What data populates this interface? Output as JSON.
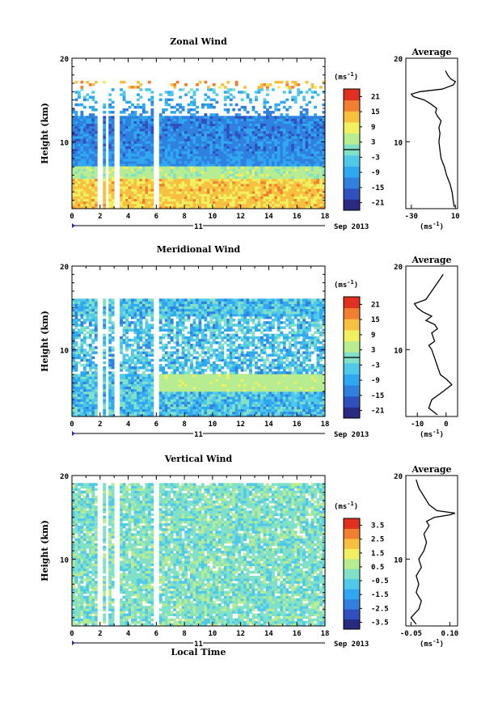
{
  "chart_data": [
    {
      "type": "heatmap",
      "title": "Zonal Wind",
      "ylabel": "Height (km)",
      "xlim": [
        0,
        18
      ],
      "ylim": [
        2,
        20
      ],
      "xticks": [
        "0",
        "2",
        "4",
        "6",
        "8",
        "10",
        "12",
        "14",
        "16",
        "18"
      ],
      "yticks": [
        "20",
        "10"
      ],
      "date_label": "11",
      "month_label": "Sep 2013",
      "colorbar": {
        "unit": "(ms",
        "unit_exp": "-1",
        "unit_close": ")",
        "range": [
          -24,
          24
        ],
        "ticks": [
          "21",
          "15",
          "9",
          "3",
          "-3",
          "-9",
          "-15",
          "-21"
        ],
        "zero_line": true
      },
      "blank_columns_hours": [
        [
          1.8,
          2.2
        ],
        [
          2.4,
          2.6
        ],
        [
          3.1,
          3.4
        ],
        [
          5.7,
          6.2
        ]
      ],
      "wind_profile": [
        [
          -18,
          4
        ],
        [
          -16,
          6
        ],
        [
          -20,
          9
        ],
        [
          -22,
          12
        ],
        [
          -18,
          14
        ],
        [
          -9,
          16
        ],
        [
          -2,
          17
        ]
      ],
      "average": {
        "title": "Average",
        "xlabel": "(ms",
        "xlabel_exp": "-1",
        "xlabel_close": ")",
        "xlim": [
          -35,
          12
        ],
        "xticks": [
          "-30",
          "10"
        ],
        "yticks": [
          "20",
          "10"
        ],
        "profile": [
          [
            9,
            2.2
          ],
          [
            8,
            3
          ],
          [
            7,
            4
          ],
          [
            5,
            5
          ],
          [
            2,
            6
          ],
          [
            0,
            7
          ],
          [
            -3,
            8
          ],
          [
            -4,
            9
          ],
          [
            -5,
            10
          ],
          [
            -4,
            11
          ],
          [
            -5,
            11.7
          ],
          [
            -3,
            12.5
          ],
          [
            -6,
            13
          ],
          [
            -8,
            13.5
          ],
          [
            -7,
            14
          ],
          [
            -12,
            14.5
          ],
          [
            -18,
            15
          ],
          [
            -28,
            15.4
          ],
          [
            -30,
            15.7
          ],
          [
            -22,
            16
          ],
          [
            -2,
            16.3
          ],
          [
            8,
            16.8
          ],
          [
            10,
            17.2
          ],
          [
            6,
            17.5
          ],
          [
            3,
            18
          ],
          [
            1,
            18.5
          ]
        ]
      }
    },
    {
      "type": "heatmap",
      "title": "Meridional Wind",
      "ylabel": "Height (km)",
      "xlim": [
        0,
        18
      ],
      "ylim": [
        2,
        20
      ],
      "xticks": [
        "0",
        "2",
        "4",
        "6",
        "8",
        "10",
        "12",
        "14",
        "16",
        "18"
      ],
      "yticks": [
        "20",
        "10"
      ],
      "date_label": "11",
      "month_label": "Sep 2013",
      "colorbar": {
        "unit": "(ms",
        "unit_exp": "-1",
        "unit_close": ")",
        "range": [
          -24,
          24
        ],
        "ticks": [
          "21",
          "15",
          "9",
          "3",
          "-3",
          "-9",
          "-15",
          "-21"
        ],
        "zero_line": true
      },
      "blank_columns_hours": [
        [
          1.8,
          2.2
        ],
        [
          2.4,
          2.6
        ],
        [
          3.1,
          3.4
        ],
        [
          5.7,
          6.2
        ]
      ],
      "wind_profile": [
        [
          -10,
          3
        ],
        [
          -8,
          4
        ],
        [
          -4,
          6
        ],
        [
          -6,
          8
        ],
        [
          -8,
          10
        ],
        [
          -10,
          13
        ],
        [
          -9,
          15
        ],
        [
          -6,
          17
        ]
      ],
      "average": {
        "title": "Average",
        "xlabel": "(ms",
        "xlabel_exp": "-1",
        "xlabel_close": ")",
        "xlim": [
          -14,
          4
        ],
        "xticks": [
          "-10",
          "0"
        ],
        "yticks": [
          "20",
          "10"
        ],
        "profile": [
          [
            -3,
            2.2
          ],
          [
            -6,
            3
          ],
          [
            -5,
            4
          ],
          [
            -1,
            5
          ],
          [
            2,
            5.8
          ],
          [
            0,
            6.5
          ],
          [
            -2,
            7
          ],
          [
            -3,
            8
          ],
          [
            -4,
            9
          ],
          [
            -5,
            10
          ],
          [
            -6,
            10.5
          ],
          [
            -4,
            11
          ],
          [
            -5,
            12
          ],
          [
            -3,
            12.5
          ],
          [
            -4,
            13
          ],
          [
            -7,
            13.5
          ],
          [
            -5,
            14
          ],
          [
            -8,
            14.5
          ],
          [
            -10,
            15
          ],
          [
            -11,
            15.5
          ],
          [
            -7,
            16
          ],
          [
            -5,
            17
          ],
          [
            -3,
            18
          ],
          [
            -2,
            18.5
          ],
          [
            -1,
            19
          ]
        ]
      }
    },
    {
      "type": "heatmap",
      "title": "Vertical Wind",
      "ylabel": "Height (km)",
      "xlabel": "Local Time",
      "xlim": [
        0,
        18
      ],
      "ylim": [
        2,
        20
      ],
      "xticks": [
        "0",
        "2",
        "4",
        "6",
        "8",
        "10",
        "12",
        "14",
        "16",
        "18"
      ],
      "yticks": [
        "20",
        "10"
      ],
      "date_label": "11",
      "month_label": "Sep 2013",
      "colorbar": {
        "unit": "(ms",
        "unit_exp": "-1",
        "unit_close": ")",
        "range": [
          -4,
          4
        ],
        "ticks": [
          "3.5",
          "2.5",
          "1.5",
          "0.5",
          "-0.5",
          "-1.5",
          "-2.5",
          "-3.5"
        ],
        "zero_line": false
      },
      "blank_columns_hours": [
        [
          1.8,
          2.2
        ],
        [
          2.4,
          2.6
        ],
        [
          3.1,
          3.4
        ],
        [
          5.7,
          6.2
        ]
      ],
      "wind_profile": [
        [
          0,
          3
        ],
        [
          0,
          6
        ],
        [
          0,
          9
        ],
        [
          0,
          12
        ],
        [
          0,
          15
        ],
        [
          0,
          18
        ]
      ],
      "average": {
        "title": "Average",
        "xlabel": "(ms",
        "xlabel_exp": "-1",
        "xlabel_close": ")",
        "xlim": [
          -0.07,
          0.13
        ],
        "xticks": [
          "-0.05",
          "0.10"
        ],
        "yticks": [
          "20",
          "10"
        ],
        "profile": [
          [
            -0.03,
            2.2
          ],
          [
            -0.05,
            3
          ],
          [
            -0.02,
            4
          ],
          [
            -0.01,
            5
          ],
          [
            -0.03,
            6
          ],
          [
            -0.02,
            7
          ],
          [
            -0.03,
            8
          ],
          [
            -0.01,
            9
          ],
          [
            -0.02,
            10
          ],
          [
            0.0,
            11
          ],
          [
            0.01,
            12
          ],
          [
            0.0,
            13
          ],
          [
            0.02,
            14
          ],
          [
            0.01,
            14.5
          ],
          [
            0.04,
            15
          ],
          [
            0.1,
            15.3
          ],
          [
            0.12,
            15.5
          ],
          [
            0.05,
            15.8
          ],
          [
            0.02,
            16.5
          ],
          [
            0.0,
            17.5
          ],
          [
            -0.02,
            18.5
          ],
          [
            -0.03,
            19.5
          ]
        ]
      }
    }
  ],
  "colors": {
    "scale": [
      "#2a2a80",
      "#3050c0",
      "#3080e0",
      "#30a8f0",
      "#50c8e8",
      "#80e0c8",
      "#b8ec90",
      "#f0f060",
      "#f8c040",
      "#f08030",
      "#e03020"
    ],
    "zonal_low": "#f5e03a",
    "zonal_mid": "#3c8ef0",
    "zonal_upper": "#6ac8f0",
    "meridional_base": "#50b8f0",
    "vertical_base": "#6ee6d2"
  }
}
